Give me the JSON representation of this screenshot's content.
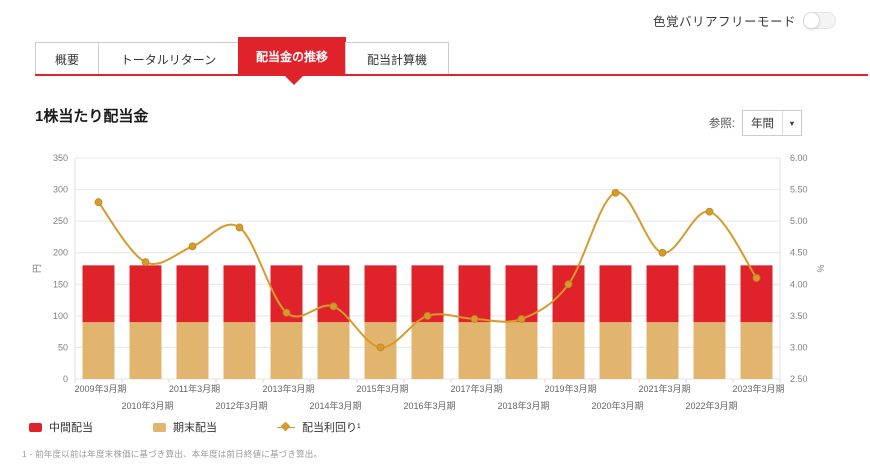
{
  "theme": {
    "accent_red": "#e0232b",
    "bar_interim_color": "#e0232b",
    "bar_yearend_color": "#e2b56f",
    "yield_line_color": "#d69a2d",
    "grid_color": "#e6e6e6",
    "axis_text_color": "#808080"
  },
  "header": {
    "colorblind_mode_label": "色覚バリアフリーモード",
    "colorblind_mode_state": "off"
  },
  "tabs": [
    {
      "label": "概要",
      "active": false
    },
    {
      "label": "トータルリターン",
      "active": false
    },
    {
      "label": "配当金の推移",
      "active": true
    },
    {
      "label": "配当計算機",
      "active": false
    }
  ],
  "section": {
    "title": "1株当たり配当金"
  },
  "period_selector": {
    "label": "参照:",
    "value": "年間",
    "caret": "▼"
  },
  "legend": [
    {
      "label": "中間配当",
      "color": "#e0232b",
      "marker": "square"
    },
    {
      "label": "期末配当",
      "color": "#e2b56f",
      "marker": "square"
    },
    {
      "label": "配当利回り¹",
      "color": "#d69a2d",
      "marker": "line-diamond"
    }
  ],
  "footnote": "1 - 前年度以前は年度末株価に基づき算出、本年度は前日終値に基づき算出。",
  "chart_data": {
    "type": "bar",
    "categories": [
      "2009年3月期",
      "2010年3月期",
      "2011年3月期",
      "2012年3月期",
      "2013年3月期",
      "2014年3月期",
      "2015年3月期",
      "2016年3月期",
      "2017年3月期",
      "2018年3月期",
      "2019年3月期",
      "2020年3月期",
      "2021年3月期",
      "2022年3月期",
      "2023年3月期"
    ],
    "series": [
      {
        "name": "中間配当",
        "type": "bar",
        "stack_level": "top",
        "axis": "left",
        "color": "#e0232b",
        "values": [
          90,
          90,
          90,
          90,
          90,
          90,
          90,
          90,
          90,
          90,
          90,
          90,
          90,
          90,
          90
        ]
      },
      {
        "name": "期末配当",
        "type": "bar",
        "stack_level": "bottom",
        "axis": "left",
        "color": "#e2b56f",
        "values": [
          90,
          90,
          90,
          90,
          90,
          90,
          90,
          90,
          90,
          90,
          90,
          90,
          90,
          90,
          90
        ]
      },
      {
        "name": "配当利回り",
        "type": "line",
        "axis": "right",
        "color": "#d69a2d",
        "marker": "diamond",
        "values": [
          5.3,
          4.35,
          4.6,
          4.9,
          3.55,
          3.65,
          3.0,
          3.5,
          3.45,
          3.45,
          4.0,
          5.45,
          4.5,
          5.15,
          4.1
        ]
      }
    ],
    "left_axis": {
      "label": "円",
      "min": 0,
      "max": 350,
      "step": 50
    },
    "right_axis": {
      "label": "%",
      "min": 2.5,
      "max": 6.0,
      "step": 0.5
    },
    "grid": "horizontal",
    "legend_position": "bottom-left"
  }
}
